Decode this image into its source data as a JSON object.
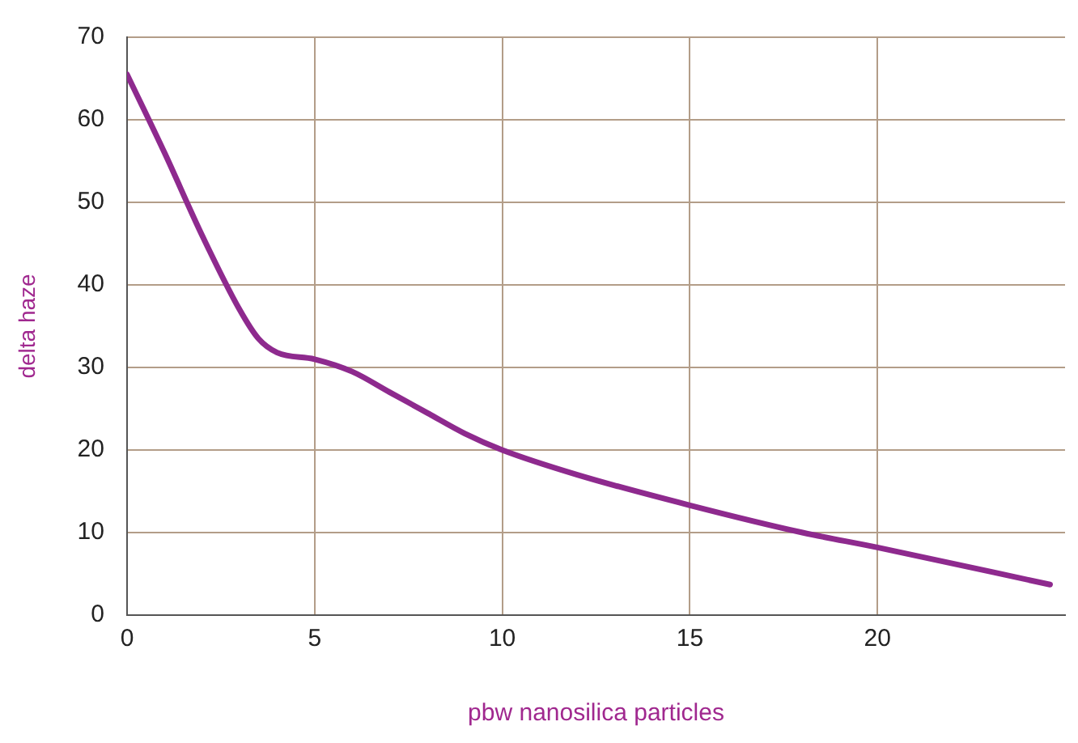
{
  "chart_data": {
    "type": "line",
    "xlabel": "pbw nanosilica particles",
    "ylabel": "delta haze",
    "x": [
      0,
      1,
      2,
      3,
      3.5,
      4,
      5,
      6,
      7,
      8,
      9,
      10,
      12,
      15,
      18,
      20,
      24.6
    ],
    "series": [
      {
        "color": "#8e2a8e",
        "values": [
          65.5,
          56,
          46,
          37,
          33.5,
          31.8,
          31,
          29.5,
          27,
          24.5,
          22,
          20,
          17,
          13.3,
          10,
          8.2,
          3.7
        ]
      }
    ],
    "xlim": [
      0,
      25
    ],
    "xticks": [
      0,
      5,
      10,
      15,
      20
    ],
    "ylim": [
      0,
      70
    ],
    "yticks": [
      0,
      10,
      20,
      30,
      40,
      50,
      60,
      70
    ],
    "grid": true,
    "legend": false,
    "marker": "none",
    "line_style": "solid"
  }
}
